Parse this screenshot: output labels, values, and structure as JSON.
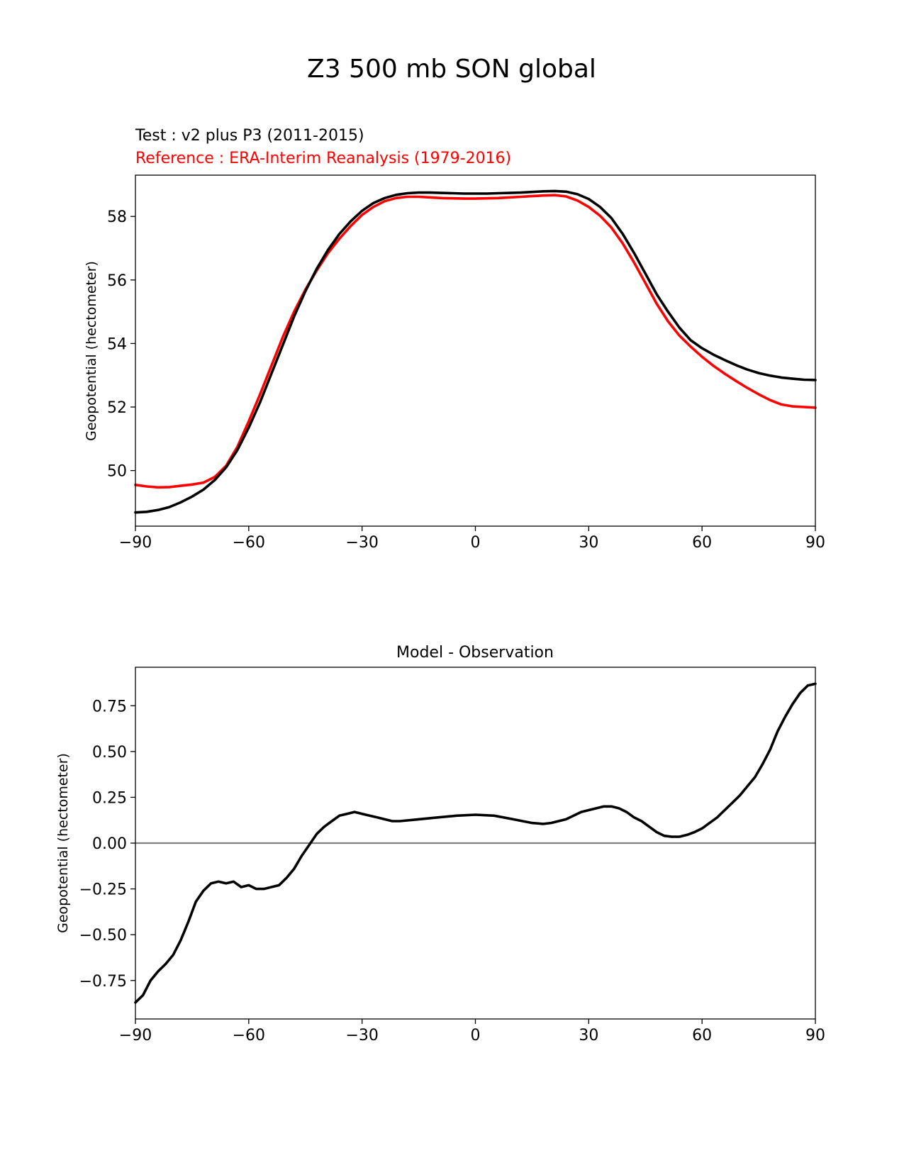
{
  "figure": {
    "title": "Z3 500 mb SON global"
  },
  "colors": {
    "test": "#000000",
    "reference": "#ff0000",
    "zero_line": "#808080"
  },
  "chart_data": [
    {
      "type": "line",
      "title": "",
      "test_label": "Test : v2 plus P3 (2011-2015)",
      "reference_label": "Reference : ERA-Interim Reanalysis (1979-2016)",
      "xlabel": "",
      "ylabel": "Geopotential (hectometer)",
      "xlim": [
        -90,
        90
      ],
      "ylim": [
        48.25,
        59.3
      ],
      "xticks": [
        -90,
        -60,
        -30,
        0,
        30,
        60,
        90
      ],
      "xtick_labels": [
        "−90",
        "−60",
        "−30",
        "0",
        "30",
        "60",
        "90"
      ],
      "yticks": [
        50,
        52,
        54,
        56,
        58
      ],
      "ytick_labels": [
        "50",
        "52",
        "54",
        "56",
        "58"
      ],
      "series": [
        {
          "name": "Test",
          "color": "#000000",
          "x": [
            -90,
            -87,
            -84,
            -81,
            -78,
            -75,
            -72,
            -69,
            -66,
            -63,
            -60,
            -57,
            -54,
            -51,
            -48,
            -45,
            -42,
            -39,
            -36,
            -33,
            -30,
            -27,
            -24,
            -21,
            -18,
            -15,
            -12,
            -9,
            -6,
            -3,
            0,
            3,
            6,
            9,
            12,
            15,
            18,
            21,
            24,
            27,
            30,
            33,
            36,
            39,
            42,
            45,
            48,
            51,
            54,
            57,
            60,
            63,
            66,
            69,
            72,
            75,
            78,
            81,
            84,
            87,
            90
          ],
          "values": [
            48.68,
            48.7,
            48.76,
            48.85,
            49.0,
            49.18,
            49.4,
            49.7,
            50.1,
            50.65,
            51.35,
            52.15,
            53.05,
            53.95,
            54.85,
            55.65,
            56.35,
            56.95,
            57.45,
            57.85,
            58.18,
            58.42,
            58.58,
            58.68,
            58.73,
            58.75,
            58.75,
            58.74,
            58.73,
            58.72,
            58.72,
            58.72,
            58.73,
            58.74,
            58.75,
            58.77,
            58.79,
            58.8,
            58.78,
            58.7,
            58.55,
            58.3,
            57.95,
            57.45,
            56.85,
            56.2,
            55.55,
            55.0,
            54.5,
            54.1,
            53.85,
            53.65,
            53.48,
            53.32,
            53.18,
            53.07,
            52.99,
            52.93,
            52.89,
            52.86,
            52.85
          ]
        },
        {
          "name": "Reference",
          "color": "#ff0000",
          "x": [
            -90,
            -87,
            -84,
            -81,
            -78,
            -75,
            -72,
            -69,
            -66,
            -63,
            -60,
            -57,
            -54,
            -51,
            -48,
            -45,
            -42,
            -39,
            -36,
            -33,
            -30,
            -27,
            -24,
            -21,
            -18,
            -15,
            -12,
            -9,
            -6,
            -3,
            0,
            3,
            6,
            9,
            12,
            15,
            18,
            21,
            24,
            27,
            30,
            33,
            36,
            39,
            42,
            45,
            48,
            51,
            54,
            57,
            60,
            63,
            66,
            69,
            72,
            75,
            78,
            81,
            84,
            87,
            90
          ],
          "values": [
            49.55,
            49.5,
            49.47,
            49.48,
            49.52,
            49.56,
            49.62,
            49.8,
            50.15,
            50.75,
            51.55,
            52.4,
            53.3,
            54.2,
            55.0,
            55.7,
            56.3,
            56.85,
            57.3,
            57.7,
            58.05,
            58.3,
            58.48,
            58.58,
            58.62,
            58.62,
            58.6,
            58.58,
            58.57,
            58.56,
            58.56,
            58.57,
            58.58,
            58.6,
            58.62,
            58.64,
            58.66,
            58.67,
            58.63,
            58.5,
            58.3,
            58.02,
            57.65,
            57.15,
            56.55,
            55.9,
            55.25,
            54.7,
            54.25,
            53.9,
            53.58,
            53.3,
            53.05,
            52.82,
            52.6,
            52.4,
            52.22,
            52.08,
            52.02,
            52.0,
            51.98
          ]
        }
      ]
    },
    {
      "type": "line",
      "title": "Model - Observation",
      "xlabel": "",
      "ylabel": "Geopotential (hectometer)",
      "xlim": [
        -90,
        90
      ],
      "ylim": [
        -0.96,
        0.96
      ],
      "xticks": [
        -90,
        -60,
        -30,
        0,
        30,
        60,
        90
      ],
      "xtick_labels": [
        "−90",
        "−60",
        "−30",
        "0",
        "30",
        "60",
        "90"
      ],
      "yticks": [
        -0.75,
        -0.5,
        -0.25,
        0,
        0.25,
        0.5,
        0.75
      ],
      "ytick_labels": [
        "−0.75",
        "−0.50",
        "−0.25",
        "0.00",
        "0.25",
        "0.50",
        "0.75"
      ],
      "zero_line": 0,
      "series": [
        {
          "name": "Model - Observation",
          "color": "#000000",
          "x": [
            -90,
            -88,
            -86,
            -84,
            -82,
            -80,
            -78,
            -76,
            -74,
            -72,
            -70,
            -68,
            -66,
            -64,
            -62,
            -60,
            -58,
            -56,
            -54,
            -52,
            -50,
            -48,
            -46,
            -44,
            -42,
            -40,
            -38,
            -36,
            -34,
            -32,
            -30,
            -28,
            -26,
            -24,
            -22,
            -20,
            -15,
            -10,
            -5,
            0,
            5,
            10,
            15,
            18,
            20,
            24,
            26,
            28,
            30,
            32,
            34,
            36,
            38,
            40,
            42,
            44,
            46,
            48,
            50,
            52,
            54,
            56,
            58,
            60,
            62,
            64,
            66,
            68,
            70,
            72,
            74,
            76,
            78,
            80,
            82,
            84,
            86,
            88,
            90
          ],
          "values": [
            -0.87,
            -0.83,
            -0.75,
            -0.7,
            -0.66,
            -0.61,
            -0.53,
            -0.43,
            -0.32,
            -0.26,
            -0.22,
            -0.21,
            -0.22,
            -0.21,
            -0.24,
            -0.23,
            -0.25,
            -0.25,
            -0.24,
            -0.23,
            -0.19,
            -0.14,
            -0.07,
            -0.01,
            0.05,
            0.09,
            0.12,
            0.15,
            0.16,
            0.17,
            0.16,
            0.15,
            0.14,
            0.13,
            0.12,
            0.12,
            0.13,
            0.14,
            0.15,
            0.155,
            0.15,
            0.13,
            0.11,
            0.105,
            0.11,
            0.13,
            0.15,
            0.17,
            0.18,
            0.19,
            0.2,
            0.2,
            0.19,
            0.17,
            0.14,
            0.12,
            0.09,
            0.06,
            0.04,
            0.035,
            0.035,
            0.045,
            0.06,
            0.08,
            0.11,
            0.14,
            0.18,
            0.22,
            0.26,
            0.31,
            0.36,
            0.43,
            0.51,
            0.61,
            0.69,
            0.76,
            0.82,
            0.86,
            0.87
          ]
        }
      ]
    }
  ]
}
